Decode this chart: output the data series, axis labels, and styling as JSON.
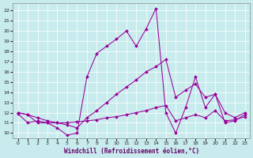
{
  "bg_color": "#c8ecee",
  "line_color": "#990099",
  "xlabel": "Windchill (Refroidissement éolien,°C)",
  "x_min": -0.5,
  "x_max": 23.5,
  "y_min": 9.5,
  "y_max": 22.7,
  "yticks": [
    10,
    11,
    12,
    13,
    14,
    15,
    16,
    17,
    18,
    19,
    20,
    21,
    22
  ],
  "xticks": [
    0,
    1,
    2,
    3,
    4,
    5,
    6,
    7,
    8,
    9,
    10,
    11,
    12,
    13,
    14,
    15,
    16,
    17,
    18,
    19,
    20,
    21,
    22,
    23
  ],
  "line_spike_x": [
    0,
    1,
    2,
    3,
    4,
    5,
    6,
    7,
    8,
    9,
    10,
    11,
    12,
    13,
    14,
    15,
    16,
    17,
    18,
    19,
    20,
    21,
    22,
    23
  ],
  "line_spike_y": [
    12.0,
    11.8,
    11.0,
    11.0,
    10.5,
    9.8,
    10.0,
    15.5,
    17.8,
    18.5,
    19.2,
    20.0,
    18.5,
    20.2,
    22.2,
    12.0,
    10.0,
    12.5,
    15.5,
    12.5,
    13.8,
    11.0,
    11.2,
    11.8
  ],
  "line_diag_x": [
    0,
    1,
    2,
    3,
    4,
    5,
    6,
    7,
    8,
    9,
    10,
    11,
    12,
    13,
    14,
    15,
    16,
    17,
    18,
    19,
    20,
    21,
    22,
    23
  ],
  "line_diag_y": [
    12.0,
    11.8,
    11.5,
    11.2,
    11.0,
    10.8,
    10.5,
    11.5,
    12.2,
    13.0,
    13.8,
    14.5,
    15.2,
    16.0,
    16.5,
    17.2,
    13.5,
    14.2,
    14.8,
    13.5,
    13.8,
    12.0,
    11.5,
    12.0
  ],
  "line_flat_x": [
    0,
    1,
    2,
    3,
    4,
    5,
    6,
    7,
    8,
    9,
    10,
    11,
    12,
    13,
    14,
    15,
    16,
    17,
    18,
    19,
    20,
    21,
    22,
    23
  ],
  "line_flat_y": [
    11.9,
    11.0,
    11.2,
    11.0,
    11.0,
    11.0,
    11.1,
    11.2,
    11.3,
    11.5,
    11.6,
    11.8,
    12.0,
    12.2,
    12.5,
    12.7,
    11.2,
    11.5,
    11.8,
    11.5,
    12.2,
    11.2,
    11.3,
    11.6
  ]
}
